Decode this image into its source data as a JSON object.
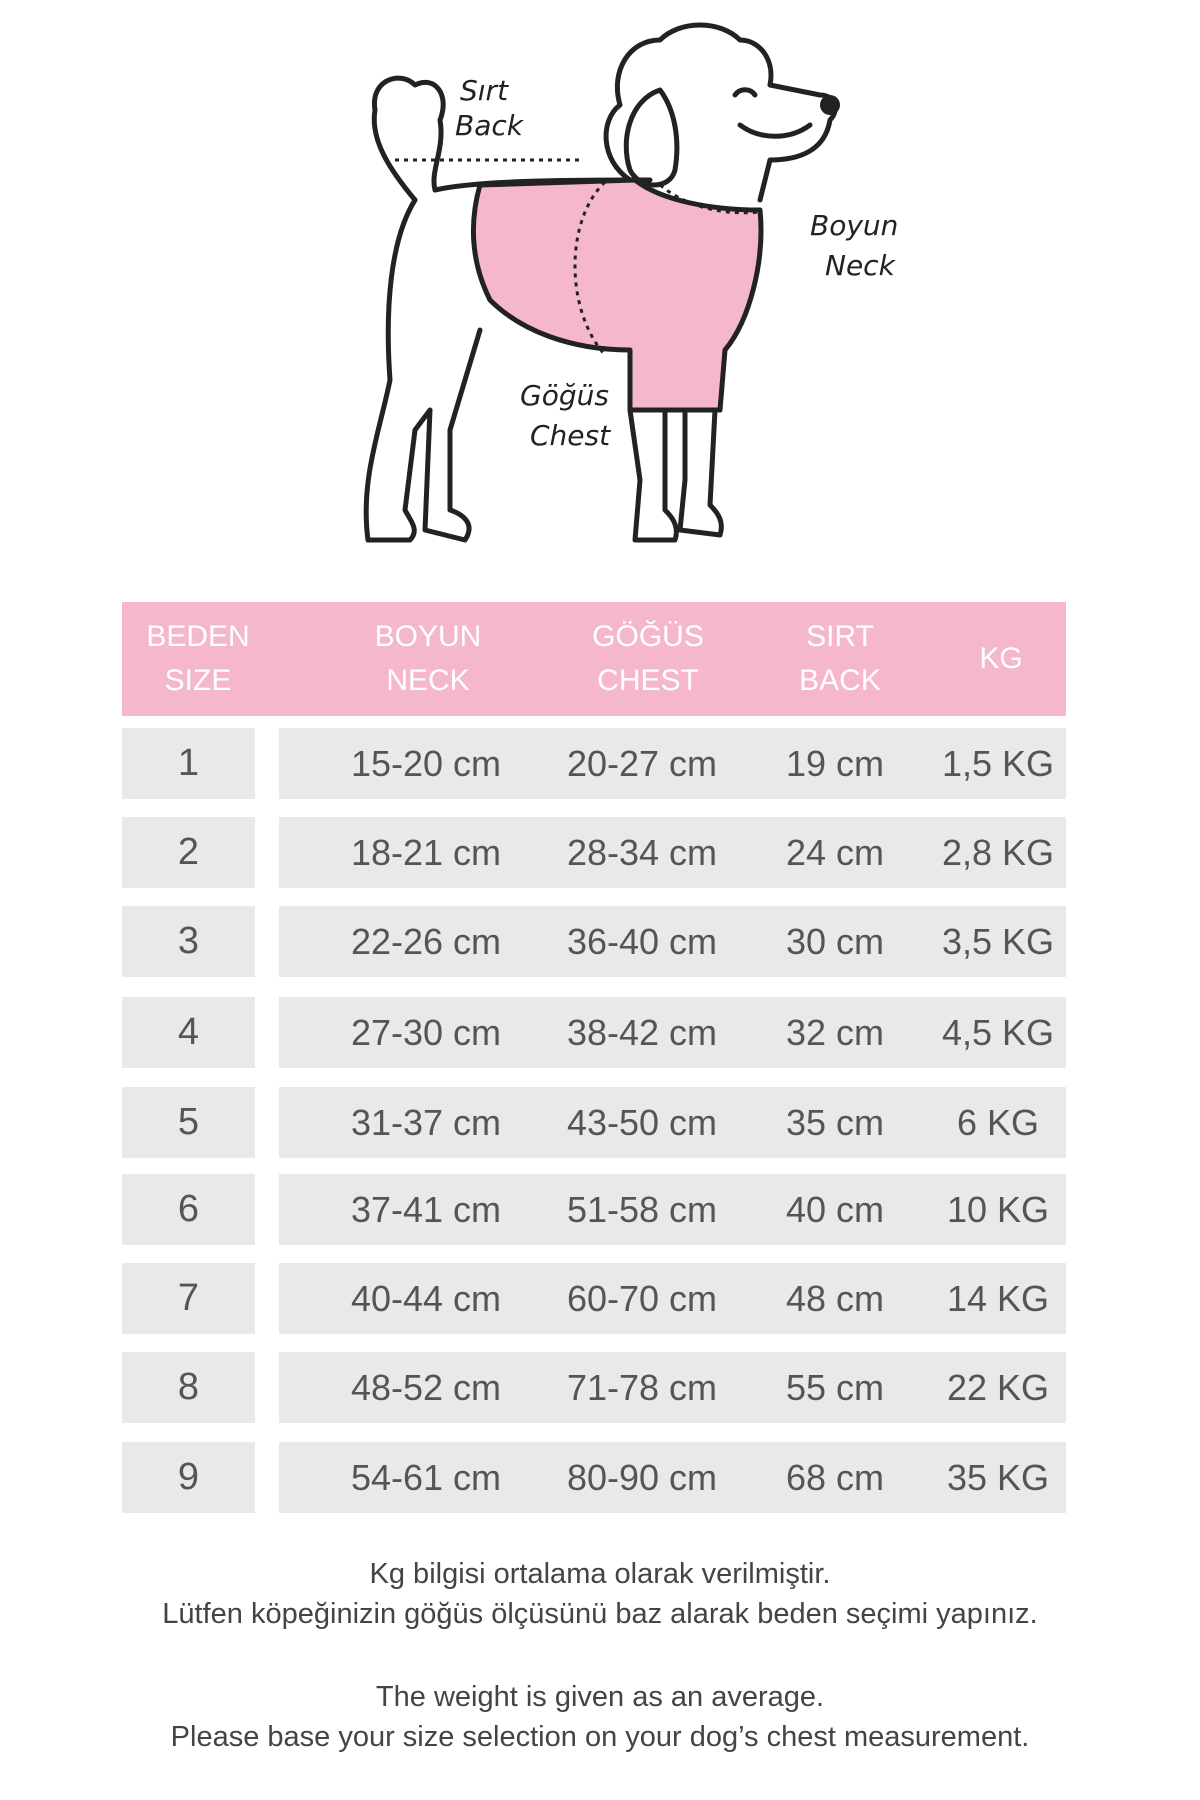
{
  "diagram": {
    "labels": {
      "back_tr": "Sırt",
      "back_en": "Back",
      "neck_tr": "Boyun",
      "neck_en": "Neck",
      "chest_tr": "Göğüs",
      "chest_en": "Chest"
    },
    "garment_color": "#f5b8cb"
  },
  "table": {
    "header_color": "#f5b8cb",
    "row_color": "#e9e9e9",
    "headers": [
      {
        "tr": "BEDEN",
        "en": "SIZE"
      },
      {
        "tr": "BOYUN",
        "en": "NECK"
      },
      {
        "tr": "GÖĞÜS",
        "en": "CHEST"
      },
      {
        "tr": "SIRT",
        "en": "BACK"
      },
      {
        "tr": "",
        "en": "KG"
      }
    ],
    "rows": [
      {
        "size": "1",
        "neck": "15-20 cm",
        "chest": "20-27 cm",
        "back": "19 cm",
        "kg": "1,5 KG"
      },
      {
        "size": "2",
        "neck": "18-21 cm",
        "chest": "28-34 cm",
        "back": "24 cm",
        "kg": "2,8 KG"
      },
      {
        "size": "3",
        "neck": "22-26 cm",
        "chest": "36-40 cm",
        "back": "30 cm",
        "kg": "3,5 KG"
      },
      {
        "size": "4",
        "neck": "27-30 cm",
        "chest": "38-42 cm",
        "back": "32 cm",
        "kg": "4,5 KG"
      },
      {
        "size": "5",
        "neck": "31-37 cm",
        "chest": "43-50 cm",
        "back": "35 cm",
        "kg": "6 KG"
      },
      {
        "size": "6",
        "neck": "37-41 cm",
        "chest": "51-58 cm",
        "back": "40 cm",
        "kg": "10 KG"
      },
      {
        "size": "7",
        "neck": "40-44 cm",
        "chest": "60-70 cm",
        "back": "48 cm",
        "kg": "14 KG"
      },
      {
        "size": "8",
        "neck": "48-52 cm",
        "chest": "71-78 cm",
        "back": "55 cm",
        "kg": "22 KG"
      },
      {
        "size": "9",
        "neck": "54-61 cm",
        "chest": "80-90 cm",
        "back": "68 cm",
        "kg": "35 KG"
      }
    ]
  },
  "notes": {
    "tr_line1": "Kg bilgisi ortalama olarak verilmiştir.",
    "tr_line2": "Lütfen köpeğinizin göğüs ölçüsünü baz alarak beden seçimi yapınız.",
    "en_line1": "The weight is given as an average.",
    "en_line2": "Please base your size selection on your dog’s chest measurement."
  }
}
